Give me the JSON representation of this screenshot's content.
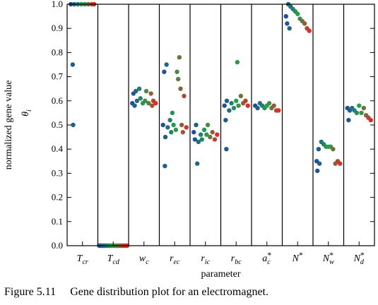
{
  "caption": {
    "number": "Figure 5.11",
    "text": "Gene distribution plot for an electromagnet."
  },
  "chart_data": {
    "type": "scatter",
    "title": "",
    "xlabel": "parameter",
    "ylabel": "normalized gene value",
    "ylabel_symbol": "θ",
    "ylabel_symbol_sub": "i",
    "ylim": [
      0.0,
      1.0
    ],
    "yticks": [
      "0.0",
      "0.1",
      "0.2",
      "0.3",
      "0.4",
      "0.5",
      "0.6",
      "0.7",
      "0.8",
      "0.9",
      "1.0"
    ],
    "grid": false,
    "color_gradient": [
      "#1f4e9c",
      "#22a04a",
      "#d7302a"
    ],
    "parameters": [
      {
        "base": "T",
        "sub": "cr",
        "sup": "",
        "points": [
          [
            0.0,
            1.0
          ],
          [
            0.08,
            0.75
          ],
          [
            0.1,
            0.5
          ],
          [
            0.15,
            1.0
          ],
          [
            0.3,
            1.0
          ],
          [
            0.45,
            1.0
          ],
          [
            0.6,
            1.0
          ],
          [
            0.75,
            1.0
          ],
          [
            0.9,
            1.0
          ],
          [
            1.0,
            1.0
          ]
        ]
      },
      {
        "base": "T",
        "sub": "cd",
        "sup": "",
        "points": [
          [
            0.0,
            0.0
          ],
          [
            0.2,
            0.0
          ],
          [
            0.4,
            0.0
          ],
          [
            0.6,
            0.0
          ],
          [
            0.8,
            0.0
          ],
          [
            1.0,
            0.0
          ]
        ]
      },
      {
        "base": "w",
        "sub": "c",
        "sup": "",
        "points": [
          [
            0.0,
            0.59
          ],
          [
            0.05,
            0.63
          ],
          [
            0.1,
            0.58
          ],
          [
            0.15,
            0.64
          ],
          [
            0.2,
            0.6
          ],
          [
            0.3,
            0.65
          ],
          [
            0.35,
            0.61
          ],
          [
            0.45,
            0.59
          ],
          [
            0.55,
            0.6
          ],
          [
            0.6,
            0.64
          ],
          [
            0.7,
            0.59
          ],
          [
            0.8,
            0.63
          ],
          [
            0.85,
            0.58
          ],
          [
            0.9,
            0.6
          ],
          [
            1.0,
            0.59
          ]
        ]
      },
      {
        "base": "r",
        "sub": "ec",
        "sup": "",
        "points": [
          [
            0.0,
            0.5
          ],
          [
            0.05,
            0.72
          ],
          [
            0.08,
            0.33
          ],
          [
            0.1,
            0.45
          ],
          [
            0.15,
            0.75
          ],
          [
            0.2,
            0.49
          ],
          [
            0.3,
            0.52
          ],
          [
            0.35,
            0.47
          ],
          [
            0.4,
            0.55
          ],
          [
            0.45,
            0.5
          ],
          [
            0.55,
            0.48
          ],
          [
            0.6,
            0.72
          ],
          [
            0.65,
            0.69
          ],
          [
            0.7,
            0.78
          ],
          [
            0.75,
            0.65
          ],
          [
            0.8,
            0.5
          ],
          [
            0.85,
            0.47
          ],
          [
            0.9,
            0.62
          ],
          [
            1.0,
            0.49
          ]
        ]
      },
      {
        "base": "r",
        "sub": "ic",
        "sup": "",
        "points": [
          [
            0.0,
            0.47
          ],
          [
            0.05,
            0.44
          ],
          [
            0.1,
            0.5
          ],
          [
            0.15,
            0.34
          ],
          [
            0.2,
            0.43
          ],
          [
            0.3,
            0.46
          ],
          [
            0.35,
            0.44
          ],
          [
            0.45,
            0.48
          ],
          [
            0.55,
            0.46
          ],
          [
            0.6,
            0.5
          ],
          [
            0.7,
            0.45
          ],
          [
            0.8,
            0.47
          ],
          [
            0.9,
            0.44
          ],
          [
            1.0,
            0.46
          ]
        ]
      },
      {
        "base": "r",
        "sub": "bc",
        "sup": "",
        "points": [
          [
            0.0,
            0.58
          ],
          [
            0.05,
            0.52
          ],
          [
            0.08,
            0.4
          ],
          [
            0.1,
            0.6
          ],
          [
            0.2,
            0.56
          ],
          [
            0.3,
            0.59
          ],
          [
            0.4,
            0.57
          ],
          [
            0.5,
            0.6
          ],
          [
            0.55,
            0.76
          ],
          [
            0.6,
            0.58
          ],
          [
            0.7,
            0.62
          ],
          [
            0.8,
            0.59
          ],
          [
            0.9,
            0.6
          ],
          [
            1.0,
            0.58
          ]
        ]
      },
      {
        "base": "a",
        "sub": "c",
        "sup": "*",
        "points": [
          [
            0.0,
            0.58
          ],
          [
            0.1,
            0.57
          ],
          [
            0.2,
            0.59
          ],
          [
            0.3,
            0.58
          ],
          [
            0.4,
            0.57
          ],
          [
            0.5,
            0.58
          ],
          [
            0.6,
            0.59
          ],
          [
            0.7,
            0.57
          ],
          [
            0.8,
            0.58
          ],
          [
            0.9,
            0.56
          ],
          [
            1.0,
            0.56
          ]
        ]
      },
      {
        "base": "N",
        "sub": "",
        "sup": "*",
        "points": [
          [
            0.0,
            0.95
          ],
          [
            0.05,
            0.92
          ],
          [
            0.1,
            1.0
          ],
          [
            0.15,
            0.9
          ],
          [
            0.2,
            0.99
          ],
          [
            0.3,
            0.98
          ],
          [
            0.4,
            0.97
          ],
          [
            0.5,
            0.96
          ],
          [
            0.6,
            0.94
          ],
          [
            0.7,
            0.93
          ],
          [
            0.8,
            0.92
          ],
          [
            0.9,
            0.9
          ],
          [
            1.0,
            0.89
          ]
        ]
      },
      {
        "base": "N",
        "sub": "w",
        "sup": "*",
        "points": [
          [
            0.0,
            0.35
          ],
          [
            0.03,
            0.31
          ],
          [
            0.08,
            0.4
          ],
          [
            0.12,
            0.34
          ],
          [
            0.2,
            0.43
          ],
          [
            0.3,
            0.42
          ],
          [
            0.4,
            0.41
          ],
          [
            0.5,
            0.41
          ],
          [
            0.6,
            0.41
          ],
          [
            0.7,
            0.4
          ],
          [
            0.8,
            0.34
          ],
          [
            0.9,
            0.35
          ],
          [
            1.0,
            0.34
          ]
        ]
      },
      {
        "base": "N",
        "sub": "d",
        "sup": "*",
        "points": [
          [
            0.0,
            0.57
          ],
          [
            0.05,
            0.52
          ],
          [
            0.1,
            0.56
          ],
          [
            0.2,
            0.57
          ],
          [
            0.3,
            0.56
          ],
          [
            0.4,
            0.55
          ],
          [
            0.5,
            0.58
          ],
          [
            0.6,
            0.55
          ],
          [
            0.7,
            0.57
          ],
          [
            0.8,
            0.54
          ],
          [
            0.9,
            0.53
          ],
          [
            1.0,
            0.52
          ]
        ]
      }
    ]
  }
}
